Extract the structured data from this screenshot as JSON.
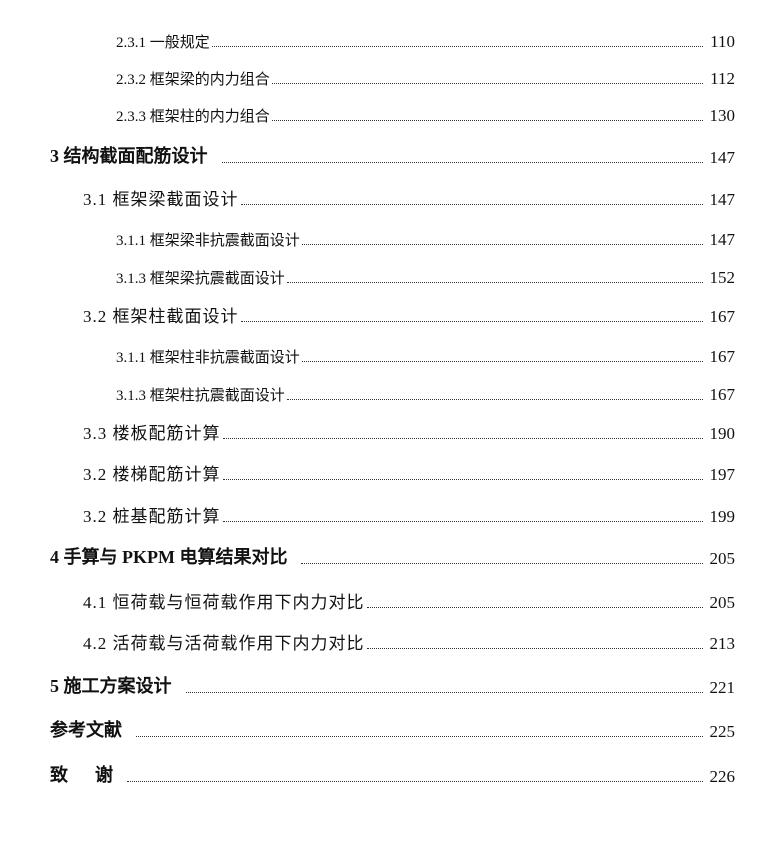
{
  "toc": [
    {
      "level": 3,
      "title": "2.3.1 一般规定",
      "page": "110"
    },
    {
      "level": 3,
      "title": "2.3.2 框架梁的内力组合",
      "page": "112"
    },
    {
      "level": 3,
      "title": "2.3.3 框架柱的内力组合",
      "page": "130"
    },
    {
      "level": 1,
      "title": "3 结构截面配筋设计",
      "page": "147"
    },
    {
      "level": 2,
      "title": "3.1 框架梁截面设计",
      "page": "147"
    },
    {
      "level": 3,
      "title": "3.1.1 框架梁非抗震截面设计",
      "page": "147"
    },
    {
      "level": 3,
      "title": "3.1.3 框架梁抗震截面设计",
      "page": "152"
    },
    {
      "level": 2,
      "title": "3.2 框架柱截面设计",
      "page": "167"
    },
    {
      "level": 3,
      "title": "3.1.1 框架柱非抗震截面设计",
      "page": "167"
    },
    {
      "level": 3,
      "title": "3.1.3 框架柱抗震截面设计",
      "page": "167"
    },
    {
      "level": 2,
      "title": "3.3 楼板配筋计算",
      "page": "190"
    },
    {
      "level": 2,
      "title": "3.2 楼梯配筋计算",
      "page": "197"
    },
    {
      "level": 2,
      "title": "3.2 桩基配筋计算",
      "page": "199"
    },
    {
      "level": 1,
      "title": "4 手算与 PKPM 电算结果对比",
      "page": "205"
    },
    {
      "level": 2,
      "title": "4.1 恒荷载与恒荷载作用下内力对比",
      "page": "205"
    },
    {
      "level": 2,
      "title": "4.2 活荷载与活荷载作用下内力对比",
      "page": "213"
    },
    {
      "level": 1,
      "title": "5 施工方案设计",
      "page": "221"
    },
    {
      "level": 1,
      "title": "参考文献",
      "page": "225"
    },
    {
      "level": 1,
      "title": "致      谢",
      "page": "226"
    }
  ]
}
